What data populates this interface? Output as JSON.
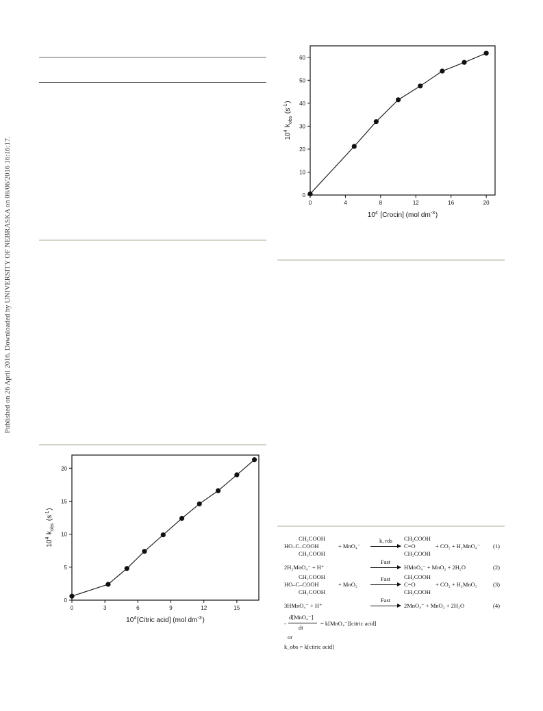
{
  "watermark": "Published on 26 April 2016. Downloaded by UNIVERSITY OF NEBRASKA on 08/06/2016 16:16:17.",
  "chart_data": [
    {
      "type": "line",
      "id": "crocin",
      "xlabel": "10^4 [Crocin] (mol dm^-3)",
      "ylabel": "10^4 k_obs (s^-1)",
      "xlim": [
        0,
        21
      ],
      "ylim": [
        0,
        65
      ],
      "xticks": [
        0,
        4,
        8,
        12,
        16,
        20
      ],
      "yticks": [
        0,
        10,
        20,
        30,
        40,
        50,
        60
      ],
      "x": [
        0,
        5,
        7.5,
        10,
        12.5,
        15,
        17.5,
        20
      ],
      "y": [
        0.5,
        21.2,
        32.0,
        41.5,
        47.5,
        54.0,
        57.8,
        61.8
      ],
      "grid": false
    },
    {
      "type": "line",
      "id": "citric",
      "xlabel": "10^4[Citric acid] (mol dm^-3)",
      "ylabel": "10^4 k_obs (s^-1)",
      "xlim": [
        0,
        17
      ],
      "ylim": [
        0,
        22
      ],
      "xticks": [
        0,
        3,
        6,
        9,
        12,
        15
      ],
      "yticks": [
        0,
        5,
        10,
        15,
        20
      ],
      "x": [
        0,
        3.3,
        5.0,
        6.6,
        8.3,
        10.0,
        11.6,
        13.3,
        15.0,
        16.6
      ],
      "y": [
        0.6,
        2.4,
        4.8,
        7.4,
        9.9,
        12.4,
        14.6,
        16.6,
        19.0,
        21.3
      ],
      "grid": false
    }
  ],
  "scheme": {
    "r1_left_top": "CH₂COOH",
    "r1_left_mid": "HO–C–COOH",
    "r1_left_bot": "CH₂COOH",
    "plus_mno4": "+   MnO₄⁻",
    "r1_arrow_label": "k, rds",
    "r1_prod_top": "CH₂COOH",
    "r1_prod_mid": "C=O",
    "r1_prod_bot": "CH₂COOH",
    "r1_prod_rest": "+  CO₂  + H₂MnO₄⁻",
    "r1_num": "(1)",
    "r2_left": "2H₂MnO₄⁻  +  H⁺",
    "r2_arrow_label": "Fast",
    "r2_right": "HMnO₄⁻  +  MnO₂  + 2H₂O",
    "r2_num": "(2)",
    "r3_left_top": "CH₂COOH",
    "r3_left_mid": "HO–C–COOH",
    "r3_left_bot": "CH₂COOH",
    "plus_mno2": "+   MnO₂",
    "r3_arrow_label": "Fast",
    "r3_prod_top": "CH₂COOH",
    "r3_prod_mid": "C=O",
    "r3_prod_bot": "CH₂COOH",
    "r3_prod_rest": "+  CO₂  + H₂MnO₃",
    "r3_num": "(3)",
    "r4_left": "3HMnO₄⁻  +  H⁺",
    "r4_arrow_label": "Fast",
    "r4_right": "2MnO₄⁻  +  MnO₂  +  2H₂O",
    "r4_num": "(4)",
    "rate_num": "d[MnO₄⁻]",
    "rate_den": "dt",
    "rate_minus": "-",
    "rate_rhs": "=  k[MnO₄⁻][citric acid]",
    "or": "or",
    "kobs": "k_obs  =  k[citric acid]"
  }
}
